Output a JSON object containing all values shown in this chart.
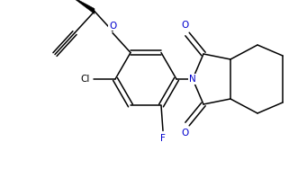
{
  "bg_color": "#ffffff",
  "line_color": "#000000",
  "atom_colors": {
    "O": "#0000cd",
    "N": "#0000cd",
    "F": "#0000cd",
    "Cl": "#000000"
  },
  "font_size": 7.5,
  "line_width": 1.1
}
